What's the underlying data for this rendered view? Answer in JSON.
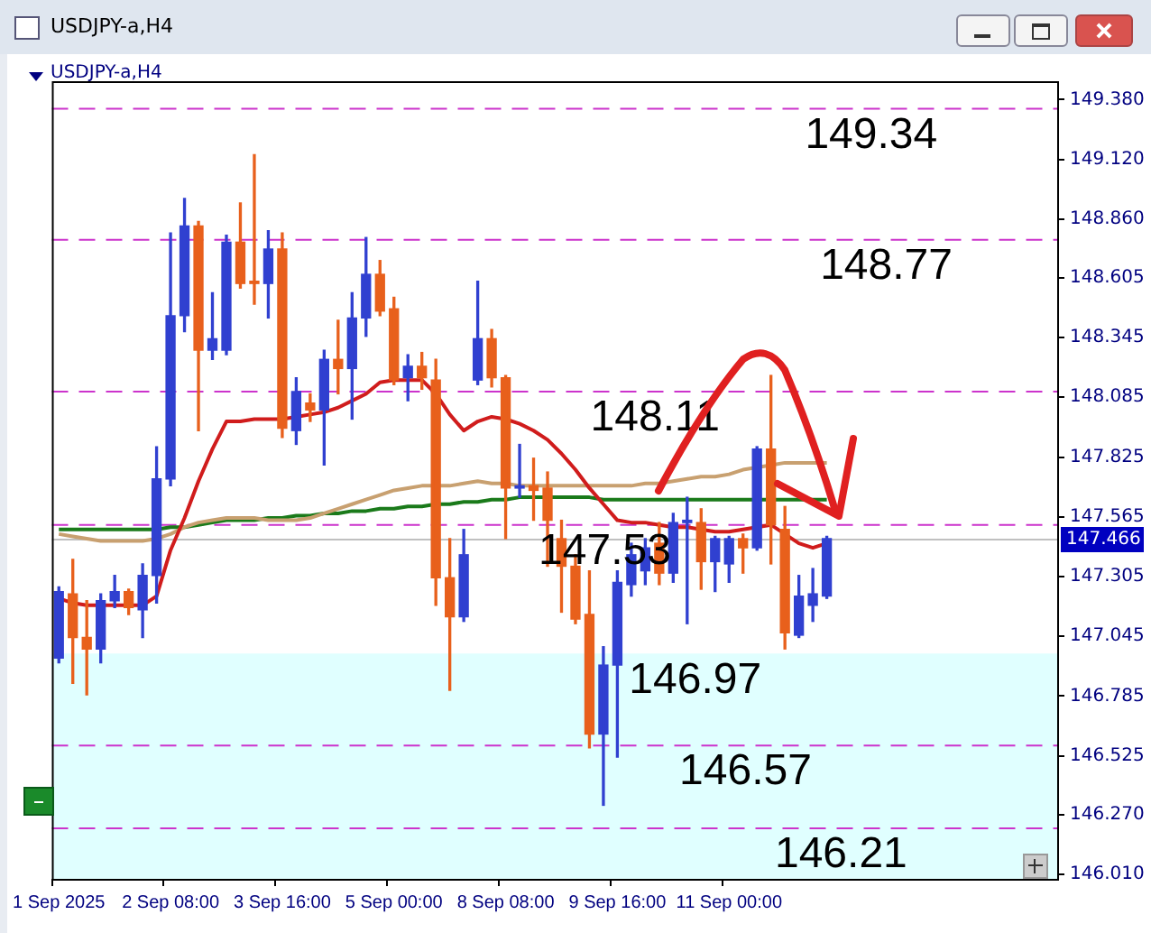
{
  "chart_data": {
    "type": "candlestick",
    "title": "USDJPY-a,H4",
    "subtitle": "USDJPY-a,H4",
    "categories": [
      "1 Sep 2025",
      null,
      null,
      null,
      null,
      null,
      null,
      null,
      "2 Sep 08:00",
      null,
      null,
      null,
      null,
      null,
      null,
      null,
      "3 Sep 16:00",
      null,
      null,
      null,
      null,
      null,
      null,
      null,
      "5 Sep 00:00",
      null,
      null,
      null,
      null,
      null,
      null,
      null,
      "8 Sep 08:00",
      null,
      null,
      null,
      null,
      null,
      null,
      null,
      "9 Sep 16:00",
      null,
      null,
      null,
      null,
      null,
      null,
      null,
      "11 Sep 00:00",
      null,
      null,
      null,
      null,
      null,
      null,
      null,
      null,
      null,
      null,
      null,
      null,
      null,
      null,
      null,
      null,
      null,
      null,
      null,
      null,
      null,
      null,
      null
    ],
    "ohlc": [
      [
        146.95,
        147.26,
        146.93,
        147.24
      ],
      [
        147.23,
        147.38,
        146.84,
        147.04
      ],
      [
        147.04,
        147.2,
        146.79,
        146.99
      ],
      [
        146.99,
        147.23,
        146.93,
        147.2
      ],
      [
        147.2,
        147.31,
        147.17,
        147.24
      ],
      [
        147.24,
        147.25,
        147.14,
        147.17
      ],
      [
        147.16,
        147.36,
        147.04,
        147.31
      ],
      [
        147.31,
        147.87,
        147.19,
        147.73
      ],
      [
        147.73,
        148.8,
        147.7,
        148.44
      ],
      [
        148.44,
        148.95,
        148.37,
        148.83
      ],
      [
        148.83,
        148.85,
        147.94,
        148.29
      ],
      [
        148.29,
        148.54,
        148.25,
        148.34
      ],
      [
        148.29,
        148.79,
        148.27,
        148.76
      ],
      [
        148.76,
        148.93,
        148.56,
        148.58
      ],
      [
        148.59,
        149.14,
        148.49,
        148.58
      ],
      [
        148.58,
        148.81,
        148.43,
        148.73
      ],
      [
        148.73,
        148.8,
        147.91,
        147.95
      ],
      [
        147.94,
        148.17,
        147.88,
        148.11
      ],
      [
        148.06,
        148.1,
        147.98,
        148.03
      ],
      [
        148.03,
        148.29,
        147.79,
        148.25
      ],
      [
        148.25,
        148.42,
        148.1,
        148.21
      ],
      [
        148.21,
        148.54,
        147.99,
        148.43
      ],
      [
        148.43,
        148.78,
        148.35,
        148.62
      ],
      [
        148.62,
        148.68,
        148.44,
        148.46
      ],
      [
        148.47,
        148.52,
        148.14,
        148.16
      ],
      [
        148.17,
        148.27,
        148.07,
        148.22
      ],
      [
        148.22,
        148.28,
        148.12,
        148.17
      ],
      [
        148.16,
        148.25,
        147.18,
        147.3
      ],
      [
        147.3,
        147.47,
        146.81,
        147.13
      ],
      [
        147.13,
        147.51,
        147.11,
        147.4
      ],
      [
        148.16,
        148.59,
        148.14,
        148.34
      ],
      [
        148.34,
        148.38,
        148.13,
        148.17
      ],
      [
        148.17,
        148.18,
        147.47,
        147.69
      ],
      [
        147.69,
        147.88,
        147.65,
        147.7
      ],
      [
        147.7,
        147.82,
        147.55,
        147.68
      ],
      [
        147.69,
        147.76,
        147.35,
        147.55
      ],
      [
        147.47,
        147.55,
        147.15,
        147.35
      ],
      [
        147.35,
        147.4,
        147.1,
        147.12
      ],
      [
        147.14,
        147.33,
        146.56,
        146.62
      ],
      [
        146.62,
        147,
        146.31,
        146.92
      ],
      [
        146.92,
        147.33,
        146.52,
        147.28
      ],
      [
        147.27,
        147.45,
        147.22,
        147.4
      ],
      [
        147.33,
        147.47,
        147.27,
        147.43
      ],
      [
        147.45,
        147.54,
        147.27,
        147.32
      ],
      [
        147.32,
        147.58,
        147.28,
        147.54
      ],
      [
        147.54,
        147.65,
        147.1,
        147.55
      ],
      [
        147.54,
        147.6,
        147.25,
        147.37
      ],
      [
        147.37,
        147.48,
        147.24,
        147.47
      ],
      [
        147.36,
        147.48,
        147.28,
        147.47
      ],
      [
        147.47,
        147.49,
        147.32,
        147.43
      ],
      [
        147.43,
        147.87,
        147.42,
        147.86
      ],
      [
        147.86,
        148.18,
        147.36,
        147.53
      ],
      [
        147.51,
        147.61,
        146.99,
        147.06
      ],
      [
        147.05,
        147.31,
        147.04,
        147.22
      ],
      [
        147.18,
        147.34,
        147.11,
        147.23
      ],
      [
        147.22,
        147.48,
        147.21,
        147.47
      ],
      null,
      null,
      null,
      null,
      null,
      null,
      null,
      null,
      null,
      null,
      null,
      null,
      null,
      null,
      null,
      null
    ],
    "colors": [
      "#3040d0",
      "#e8601c",
      "#e8601c",
      "#3040d0",
      "#3040d0",
      "#e8601c",
      "#3040d0",
      "#3040d0",
      "#3040d0",
      "#3040d0",
      "#e8601c",
      "#3040d0",
      "#3040d0",
      "#e8601c",
      "#e8601c",
      "#3040d0",
      "#e8601c",
      "#3040d0",
      "#e8601c",
      "#3040d0",
      "#e8601c",
      "#3040d0",
      "#3040d0",
      "#e8601c",
      "#e8601c",
      "#3040d0",
      "#e8601c",
      "#e8601c",
      "#e8601c",
      "#3040d0",
      "#3040d0",
      "#e8601c",
      "#e8601c",
      "#3040d0",
      "#e8601c",
      "#e8601c",
      "#e8601c",
      "#e8601c",
      "#e8601c",
      "#3040d0",
      "#3040d0",
      "#3040d0",
      "#3040d0",
      "#e8601c",
      "#3040d0",
      "#3040d0",
      "#e8601c",
      "#3040d0",
      "#3040d0",
      "#e8601c",
      "#3040d0",
      "#e8601c",
      "#e8601c",
      "#3040d0",
      "#3040d0",
      "#3040d0",
      null,
      null,
      null,
      null,
      null,
      null,
      null,
      null,
      null,
      null,
      null,
      null,
      null,
      null,
      null,
      null
    ],
    "series": [
      {
        "type": "line",
        "color": "#d01c1c",
        "values": [
          147.21,
          147.19,
          147.18,
          147.18,
          147.18,
          147.18,
          147.18,
          147.22,
          147.42,
          147.56,
          147.72,
          147.86,
          147.98,
          147.98,
          147.99,
          147.99,
          147.99,
          148.0,
          148.01,
          148.02,
          148.04,
          148.07,
          148.1,
          148.15,
          148.16,
          148.16,
          148.16,
          148.1,
          148.01,
          147.94,
          147.98,
          148.0,
          147.99,
          147.97,
          147.94,
          147.9,
          147.84,
          147.77,
          147.69,
          147.62,
          147.55,
          147.54,
          147.54,
          147.53,
          147.52,
          147.52,
          147.51,
          147.5,
          147.5,
          147.51,
          147.52,
          147.53,
          147.49,
          147.45,
          147.43,
          147.45,
          null,
          null,
          null,
          null,
          null,
          null,
          null,
          null,
          null,
          null,
          null,
          null,
          null,
          null,
          null,
          null
        ]
      },
      {
        "type": "line",
        "color": "#c8a070",
        "values": [
          147.49,
          147.48,
          147.47,
          147.46,
          147.46,
          147.46,
          147.46,
          147.47,
          147.49,
          147.52,
          147.54,
          147.55,
          147.56,
          147.56,
          147.56,
          147.55,
          147.55,
          147.55,
          147.56,
          147.58,
          147.6,
          147.62,
          147.64,
          147.66,
          147.68,
          147.69,
          147.7,
          147.7,
          147.7,
          147.71,
          147.72,
          147.71,
          147.71,
          147.7,
          147.7,
          147.7,
          147.7,
          147.7,
          147.7,
          147.7,
          147.7,
          147.7,
          147.71,
          147.71,
          147.72,
          147.73,
          147.74,
          147.74,
          147.75,
          147.77,
          147.78,
          147.79,
          147.8,
          147.8,
          147.8,
          147.8,
          null,
          null,
          null,
          null,
          null,
          null,
          null,
          null,
          null,
          null,
          null,
          null,
          null,
          null,
          null,
          null
        ]
      },
      {
        "type": "line",
        "color": "#1a7a1a",
        "values": [
          147.51,
          147.51,
          147.51,
          147.51,
          147.51,
          147.51,
          147.51,
          147.51,
          147.52,
          147.52,
          147.53,
          147.54,
          147.55,
          147.55,
          147.55,
          147.56,
          147.56,
          147.57,
          147.57,
          147.58,
          147.58,
          147.59,
          147.59,
          147.6,
          147.6,
          147.61,
          147.61,
          147.62,
          147.62,
          147.63,
          147.63,
          147.64,
          147.64,
          147.65,
          147.65,
          147.65,
          147.65,
          147.65,
          147.65,
          147.64,
          147.64,
          147.64,
          147.64,
          147.64,
          147.64,
          147.64,
          147.64,
          147.64,
          147.64,
          147.64,
          147.64,
          147.64,
          147.64,
          147.64,
          147.64,
          147.64,
          null,
          null,
          null,
          null,
          null,
          null,
          null,
          null,
          null,
          null,
          null,
          null,
          null,
          null,
          null,
          null
        ]
      }
    ],
    "ylim": [
      145.99,
      149.46
    ],
    "yticks": [
      {
        "value": 149.38,
        "label": "149.380"
      },
      {
        "value": 149.12,
        "label": "149.120"
      },
      {
        "value": 148.86,
        "label": "148.860"
      },
      {
        "value": 148.605,
        "label": "148.605"
      },
      {
        "value": 148.345,
        "label": "148.345"
      },
      {
        "value": 148.085,
        "label": "148.085"
      },
      {
        "value": 147.825,
        "label": "147.825"
      },
      {
        "value": 147.565,
        "label": "147.565"
      },
      {
        "value": 147.305,
        "label": "147.305"
      },
      {
        "value": 147.045,
        "label": "147.045"
      },
      {
        "value": 146.785,
        "label": "146.785"
      },
      {
        "value": 146.525,
        "label": "146.525"
      },
      {
        "value": 146.27,
        "label": "146.270"
      },
      {
        "value": 146.01,
        "label": "146.010"
      }
    ],
    "ref_lines": [
      {
        "axis": "y",
        "value": 149.34,
        "label": "149.34",
        "color": "#cc33cc",
        "line_style": "dashed"
      },
      {
        "axis": "y",
        "value": 148.77,
        "label": "148.77",
        "color": "#cc33cc",
        "line_style": "dashed"
      },
      {
        "axis": "y",
        "value": 148.11,
        "label": "148.11",
        "color": "#cc33cc",
        "line_style": "dashed"
      },
      {
        "axis": "y",
        "value": 147.53,
        "label": "147.53",
        "color": "#cc33cc",
        "line_style": "dashed"
      },
      {
        "axis": "y",
        "value": 146.57,
        "label": "146.57",
        "color": "#cc33cc",
        "line_style": "dashed"
      },
      {
        "axis": "y",
        "value": 146.21,
        "label": "146.21",
        "color": "#cc33cc",
        "line_style": "dashed"
      },
      {
        "axis": "y",
        "value": 147.466,
        "label": "147.466",
        "color": "#c0c0c0",
        "line_style": "solid"
      }
    ],
    "bands": [
      {
        "axis": "y",
        "from": 145.99,
        "to": 146.97,
        "label": "146.97",
        "color": "#e0ffff"
      }
    ],
    "grid": false,
    "legend": false,
    "marker": "none"
  }
}
